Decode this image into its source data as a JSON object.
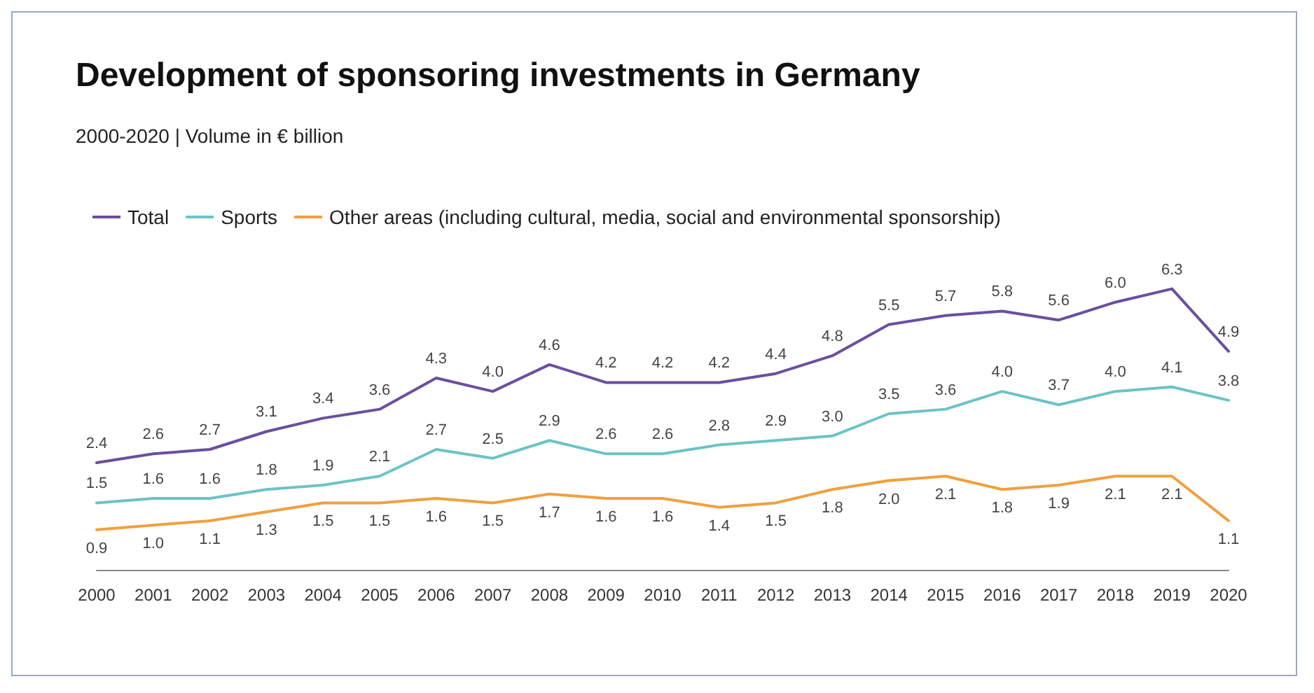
{
  "chart_data": {
    "type": "line",
    "title": "Development of sponsoring investments in Germany",
    "subtitle": "2000-2020 | Volume in € billion",
    "categories": [
      "2000",
      "2001",
      "2002",
      "2003",
      "2004",
      "2005",
      "2006",
      "2007",
      "2008",
      "2009",
      "2010",
      "2011",
      "2012",
      "2013",
      "2014",
      "2015",
      "2016",
      "2017",
      "2018",
      "2019",
      "2020"
    ],
    "series": [
      {
        "name": "Total",
        "color": "#6a4fa0",
        "values": [
          2.4,
          2.6,
          2.7,
          3.1,
          3.4,
          3.6,
          4.3,
          4.0,
          4.6,
          4.2,
          4.2,
          4.2,
          4.4,
          4.8,
          5.5,
          5.7,
          5.8,
          5.6,
          6.0,
          6.3,
          4.9
        ],
        "value_labels": [
          "2.4",
          "2.6",
          "2.7",
          "3.1",
          "3.4",
          "3.6",
          "4.3",
          "4.0",
          "4.6",
          "4.2",
          "4.2",
          "4.2",
          "4.4",
          "4.8",
          "5.5",
          "5.7",
          "5.8",
          "5.6",
          "6.0",
          "6.3",
          "4.9"
        ]
      },
      {
        "name": "Sports",
        "color": "#6cc3c6",
        "values": [
          1.5,
          1.6,
          1.6,
          1.8,
          1.9,
          2.1,
          2.7,
          2.5,
          2.9,
          2.6,
          2.6,
          2.8,
          2.9,
          3.0,
          3.5,
          3.6,
          4.0,
          3.7,
          4.0,
          4.1,
          3.8
        ],
        "value_labels": [
          "1.5",
          "1.6",
          "1.6",
          "1.8",
          "1.9",
          "2.1",
          "2.7",
          "2.5",
          "2.9",
          "2.6",
          "2.6",
          "2.8",
          "2.9",
          "3.0",
          "3.5",
          "3.6",
          "4.0",
          "3.7",
          "4.0",
          "4.1",
          "3.8"
        ]
      },
      {
        "name": "Other areas (including cultural, media, social and environmental sponsorship)",
        "color": "#f0a040",
        "values": [
          0.9,
          1.0,
          1.1,
          1.3,
          1.5,
          1.5,
          1.6,
          1.5,
          1.7,
          1.6,
          1.6,
          1.4,
          1.5,
          1.8,
          2.0,
          2.1,
          1.8,
          1.9,
          2.1,
          2.1,
          1.1
        ],
        "value_labels": [
          "0.9",
          "1.0",
          "1.1",
          "1.3",
          "1.5",
          "1.5",
          "1.6",
          "1.5",
          "1.7",
          "1.6",
          "1.6",
          "1.4",
          "1.5",
          "1.8",
          "2.0",
          "2.1",
          "1.8",
          "1.9",
          "2.1",
          "2.1",
          "1.1"
        ]
      }
    ],
    "legend": "top left",
    "grid": false,
    "tick_labels": "x",
    "marker": "none",
    "line_style": "solid"
  }
}
